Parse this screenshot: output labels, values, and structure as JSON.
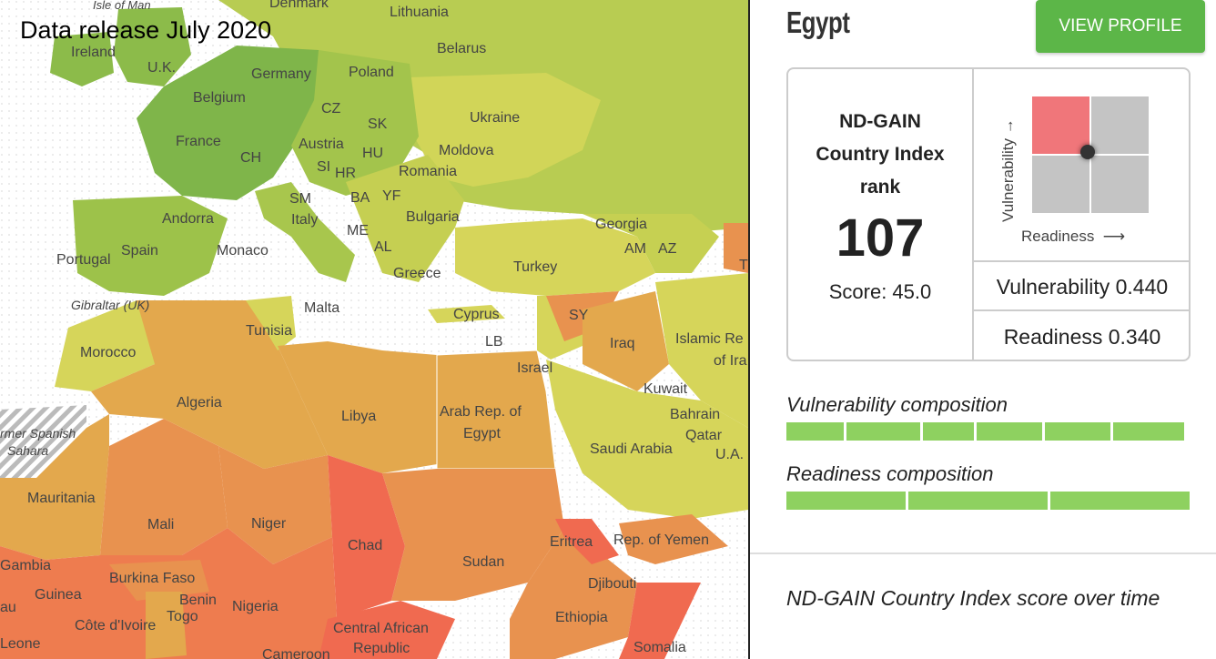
{
  "map": {
    "release_label": "Data release July 2020",
    "colors": {
      "sea": "#ffffff",
      "green_dark": "#7fb54a",
      "green": "#9cc24a",
      "yellow_green": "#c4cf50",
      "yellow": "#d6d55a",
      "orange_light": "#e3a84d",
      "orange": "#e8924f",
      "orange_red": "#ee7c4f",
      "red": "#f06a50"
    },
    "labels": [
      {
        "name": "label-isle-of-man",
        "text": "Isle of Man"
      },
      {
        "name": "label-denmark",
        "text": "Denmark"
      },
      {
        "name": "label-lithuania",
        "text": "Lithuania"
      },
      {
        "name": "label-ireland",
        "text": "Ireland"
      },
      {
        "name": "label-uk",
        "text": "U.K."
      },
      {
        "name": "label-belarus",
        "text": "Belarus"
      },
      {
        "name": "label-germany",
        "text": "Germany"
      },
      {
        "name": "label-poland",
        "text": "Poland"
      },
      {
        "name": "label-belgium",
        "text": "Belgium"
      },
      {
        "name": "label-cz",
        "text": "CZ"
      },
      {
        "name": "label-ukraine",
        "text": "Ukraine"
      },
      {
        "name": "label-france",
        "text": "France"
      },
      {
        "name": "label-sk",
        "text": "SK"
      },
      {
        "name": "label-austria",
        "text": "Austria"
      },
      {
        "name": "label-moldova",
        "text": "Moldova"
      },
      {
        "name": "label-ch",
        "text": "CH"
      },
      {
        "name": "label-hu",
        "text": "HU"
      },
      {
        "name": "label-si",
        "text": "SI"
      },
      {
        "name": "label-hr",
        "text": "HR"
      },
      {
        "name": "label-romania",
        "text": "Romania"
      },
      {
        "name": "label-sm",
        "text": "SM"
      },
      {
        "name": "label-ba",
        "text": "BA"
      },
      {
        "name": "label-yf",
        "text": "YF"
      },
      {
        "name": "label-andorra",
        "text": "Andorra"
      },
      {
        "name": "label-italy",
        "text": "Italy"
      },
      {
        "name": "label-bulgaria",
        "text": "Bulgaria"
      },
      {
        "name": "label-georgia",
        "text": "Georgia"
      },
      {
        "name": "label-me",
        "text": "ME"
      },
      {
        "name": "label-portugal",
        "text": "Portugal"
      },
      {
        "name": "label-spain",
        "text": "Spain"
      },
      {
        "name": "label-monaco",
        "text": "Monaco"
      },
      {
        "name": "label-al",
        "text": "AL"
      },
      {
        "name": "label-am",
        "text": "AM"
      },
      {
        "name": "label-az",
        "text": "AZ"
      },
      {
        "name": "label-greece",
        "text": "Greece"
      },
      {
        "name": "label-turkey",
        "text": "Turkey"
      },
      {
        "name": "label-gibraltar",
        "text": "Gibraltar (UK)"
      },
      {
        "name": "label-malta",
        "text": "Malta"
      },
      {
        "name": "label-cyprus",
        "text": "Cyprus"
      },
      {
        "name": "label-sy",
        "text": "SY"
      },
      {
        "name": "label-tunisia",
        "text": "Tunisia"
      },
      {
        "name": "label-lb",
        "text": "LB"
      },
      {
        "name": "label-iraq",
        "text": "Iraq"
      },
      {
        "name": "label-iran",
        "text": "Islamic Re"
      },
      {
        "name": "label-iran-2",
        "text": "of Ira"
      },
      {
        "name": "label-morocco",
        "text": "Morocco"
      },
      {
        "name": "label-israel",
        "text": "Israel"
      },
      {
        "name": "label-kuwait",
        "text": "Kuwait"
      },
      {
        "name": "label-algeria",
        "text": "Algeria"
      },
      {
        "name": "label-libya",
        "text": "Libya"
      },
      {
        "name": "label-egypt",
        "text": "Arab Rep. of"
      },
      {
        "name": "label-egypt-2",
        "text": "Egypt"
      },
      {
        "name": "label-bahrain",
        "text": "Bahrain"
      },
      {
        "name": "label-qatar",
        "text": "Qatar"
      },
      {
        "name": "label-western-sahara",
        "text": "rmer Spanish"
      },
      {
        "name": "label-western-sahara-2",
        "text": "Sahara"
      },
      {
        "name": "label-saudi",
        "text": "Saudi Arabia"
      },
      {
        "name": "label-uae",
        "text": "U.A."
      },
      {
        "name": "label-mauritania",
        "text": "Mauritania"
      },
      {
        "name": "label-mali",
        "text": "Mali"
      },
      {
        "name": "label-niger",
        "text": "Niger"
      },
      {
        "name": "label-chad",
        "text": "Chad"
      },
      {
        "name": "label-sudan",
        "text": "Sudan"
      },
      {
        "name": "label-eritrea",
        "text": "Eritrea"
      },
      {
        "name": "label-yemen",
        "text": "Rep. of Yemen"
      },
      {
        "name": "label-gambia",
        "text": "Gambia"
      },
      {
        "name": "label-burkina",
        "text": "Burkina Faso"
      },
      {
        "name": "label-djibouti",
        "text": "Djibouti"
      },
      {
        "name": "label-guinea",
        "text": "Guinea"
      },
      {
        "name": "label-benin",
        "text": "Benin"
      },
      {
        "name": "label-togo",
        "text": "Togo"
      },
      {
        "name": "label-nigeria",
        "text": "Nigeria"
      },
      {
        "name": "label-ethiopia",
        "text": "Ethiopia"
      },
      {
        "name": "label-guinea-bissau",
        "text": "au"
      },
      {
        "name": "label-cote-divoire",
        "text": "Côte d'Ivoire"
      },
      {
        "name": "label-car",
        "text": "Central African"
      },
      {
        "name": "label-car-2",
        "text": "Republic"
      },
      {
        "name": "label-sierra-leone",
        "text": "Leone"
      },
      {
        "name": "label-cameroon",
        "text": "Cameroon"
      },
      {
        "name": "label-somalia",
        "text": "Somalia"
      },
      {
        "name": "label-t-cut",
        "text": "T"
      }
    ]
  },
  "panel": {
    "country": "Egypt",
    "view_profile_label": "VIEW PROFILE",
    "rank_label_line1": "ND-GAIN",
    "rank_label_line2": "Country Index",
    "rank_label_line3": "rank",
    "rank_value": "107",
    "score_text": "Score: 45.0",
    "quadrant": {
      "vulnerability_axis": "Vulnerability",
      "readiness_axis": "Readiness",
      "highlight_color": "#f0767a",
      "cell_color": "#c4c4c4"
    },
    "vulnerability_text": "Vulnerability 0.440",
    "readiness_text": "Readiness 0.340",
    "vulnerability_composition_label": "Vulnerability composition",
    "vulnerability_segments": [
      0.146,
      0.188,
      0.131,
      0.167,
      0.167,
      0.181
    ],
    "readiness_composition_label": "Readiness composition",
    "readiness_segments": [
      0.3,
      0.35,
      0.35
    ],
    "over_time_label": "ND-GAIN Country Index score over time"
  }
}
